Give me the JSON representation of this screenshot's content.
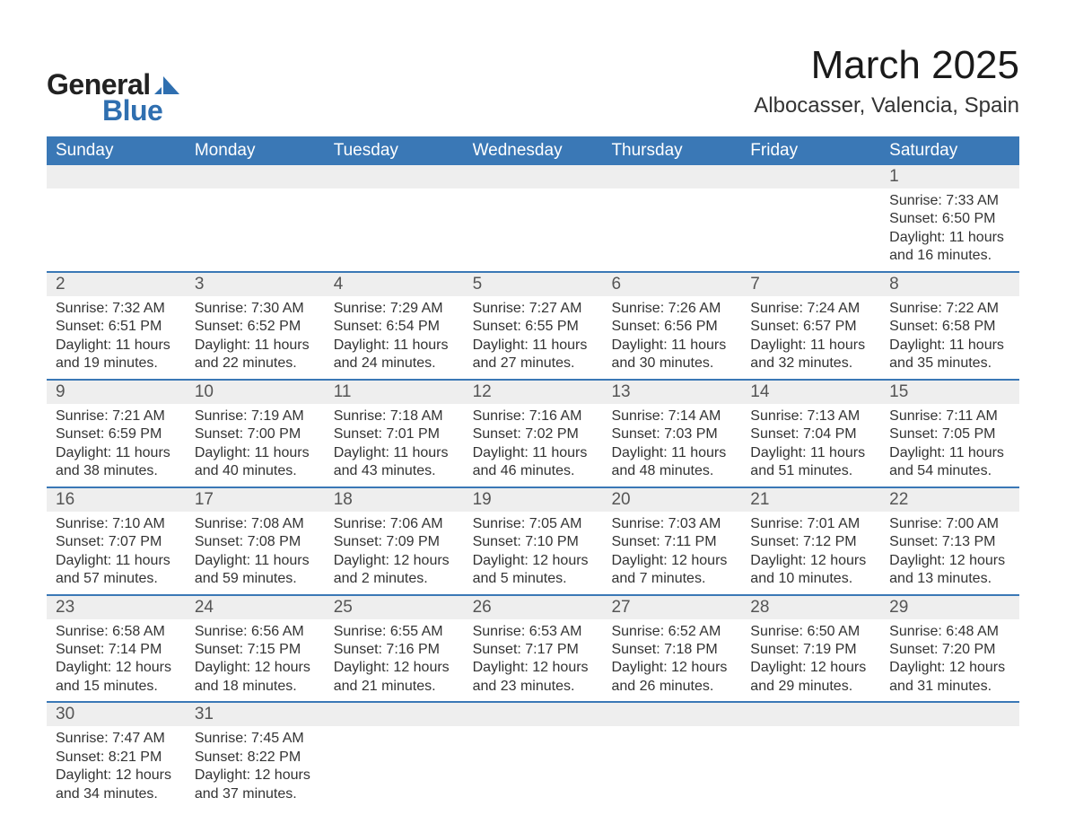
{
  "brand": {
    "text_general": "General",
    "text_blue": "Blue",
    "sail_color": "#2f6fb0",
    "text_color": "#222222"
  },
  "title": {
    "month": "March 2025",
    "location": "Albocasser, Valencia, Spain"
  },
  "colors": {
    "header_bg": "#3a78b6",
    "header_text": "#ffffff",
    "daynum_bg": "#eeeeee",
    "daynum_text": "#555555",
    "body_text": "#333333",
    "week_border": "#3a78b6",
    "page_bg": "#ffffff"
  },
  "typography": {
    "month_title_fontsize": 44,
    "location_fontsize": 24,
    "header_fontsize": 19,
    "daynum_fontsize": 19,
    "data_fontsize": 16,
    "logo_fontsize": 32
  },
  "day_labels": [
    "Sunday",
    "Monday",
    "Tuesday",
    "Wednesday",
    "Thursday",
    "Friday",
    "Saturday"
  ],
  "weeks": [
    [
      {
        "day": "",
        "sunrise": "",
        "sunset": "",
        "daylight1": "",
        "daylight2": ""
      },
      {
        "day": "",
        "sunrise": "",
        "sunset": "",
        "daylight1": "",
        "daylight2": ""
      },
      {
        "day": "",
        "sunrise": "",
        "sunset": "",
        "daylight1": "",
        "daylight2": ""
      },
      {
        "day": "",
        "sunrise": "",
        "sunset": "",
        "daylight1": "",
        "daylight2": ""
      },
      {
        "day": "",
        "sunrise": "",
        "sunset": "",
        "daylight1": "",
        "daylight2": ""
      },
      {
        "day": "",
        "sunrise": "",
        "sunset": "",
        "daylight1": "",
        "daylight2": ""
      },
      {
        "day": "1",
        "sunrise": "Sunrise: 7:33 AM",
        "sunset": "Sunset: 6:50 PM",
        "daylight1": "Daylight: 11 hours",
        "daylight2": "and 16 minutes."
      }
    ],
    [
      {
        "day": "2",
        "sunrise": "Sunrise: 7:32 AM",
        "sunset": "Sunset: 6:51 PM",
        "daylight1": "Daylight: 11 hours",
        "daylight2": "and 19 minutes."
      },
      {
        "day": "3",
        "sunrise": "Sunrise: 7:30 AM",
        "sunset": "Sunset: 6:52 PM",
        "daylight1": "Daylight: 11 hours",
        "daylight2": "and 22 minutes."
      },
      {
        "day": "4",
        "sunrise": "Sunrise: 7:29 AM",
        "sunset": "Sunset: 6:54 PM",
        "daylight1": "Daylight: 11 hours",
        "daylight2": "and 24 minutes."
      },
      {
        "day": "5",
        "sunrise": "Sunrise: 7:27 AM",
        "sunset": "Sunset: 6:55 PM",
        "daylight1": "Daylight: 11 hours",
        "daylight2": "and 27 minutes."
      },
      {
        "day": "6",
        "sunrise": "Sunrise: 7:26 AM",
        "sunset": "Sunset: 6:56 PM",
        "daylight1": "Daylight: 11 hours",
        "daylight2": "and 30 minutes."
      },
      {
        "day": "7",
        "sunrise": "Sunrise: 7:24 AM",
        "sunset": "Sunset: 6:57 PM",
        "daylight1": "Daylight: 11 hours",
        "daylight2": "and 32 minutes."
      },
      {
        "day": "8",
        "sunrise": "Sunrise: 7:22 AM",
        "sunset": "Sunset: 6:58 PM",
        "daylight1": "Daylight: 11 hours",
        "daylight2": "and 35 minutes."
      }
    ],
    [
      {
        "day": "9",
        "sunrise": "Sunrise: 7:21 AM",
        "sunset": "Sunset: 6:59 PM",
        "daylight1": "Daylight: 11 hours",
        "daylight2": "and 38 minutes."
      },
      {
        "day": "10",
        "sunrise": "Sunrise: 7:19 AM",
        "sunset": "Sunset: 7:00 PM",
        "daylight1": "Daylight: 11 hours",
        "daylight2": "and 40 minutes."
      },
      {
        "day": "11",
        "sunrise": "Sunrise: 7:18 AM",
        "sunset": "Sunset: 7:01 PM",
        "daylight1": "Daylight: 11 hours",
        "daylight2": "and 43 minutes."
      },
      {
        "day": "12",
        "sunrise": "Sunrise: 7:16 AM",
        "sunset": "Sunset: 7:02 PM",
        "daylight1": "Daylight: 11 hours",
        "daylight2": "and 46 minutes."
      },
      {
        "day": "13",
        "sunrise": "Sunrise: 7:14 AM",
        "sunset": "Sunset: 7:03 PM",
        "daylight1": "Daylight: 11 hours",
        "daylight2": "and 48 minutes."
      },
      {
        "day": "14",
        "sunrise": "Sunrise: 7:13 AM",
        "sunset": "Sunset: 7:04 PM",
        "daylight1": "Daylight: 11 hours",
        "daylight2": "and 51 minutes."
      },
      {
        "day": "15",
        "sunrise": "Sunrise: 7:11 AM",
        "sunset": "Sunset: 7:05 PM",
        "daylight1": "Daylight: 11 hours",
        "daylight2": "and 54 minutes."
      }
    ],
    [
      {
        "day": "16",
        "sunrise": "Sunrise: 7:10 AM",
        "sunset": "Sunset: 7:07 PM",
        "daylight1": "Daylight: 11 hours",
        "daylight2": "and 57 minutes."
      },
      {
        "day": "17",
        "sunrise": "Sunrise: 7:08 AM",
        "sunset": "Sunset: 7:08 PM",
        "daylight1": "Daylight: 11 hours",
        "daylight2": "and 59 minutes."
      },
      {
        "day": "18",
        "sunrise": "Sunrise: 7:06 AM",
        "sunset": "Sunset: 7:09 PM",
        "daylight1": "Daylight: 12 hours",
        "daylight2": "and 2 minutes."
      },
      {
        "day": "19",
        "sunrise": "Sunrise: 7:05 AM",
        "sunset": "Sunset: 7:10 PM",
        "daylight1": "Daylight: 12 hours",
        "daylight2": "and 5 minutes."
      },
      {
        "day": "20",
        "sunrise": "Sunrise: 7:03 AM",
        "sunset": "Sunset: 7:11 PM",
        "daylight1": "Daylight: 12 hours",
        "daylight2": "and 7 minutes."
      },
      {
        "day": "21",
        "sunrise": "Sunrise: 7:01 AM",
        "sunset": "Sunset: 7:12 PM",
        "daylight1": "Daylight: 12 hours",
        "daylight2": "and 10 minutes."
      },
      {
        "day": "22",
        "sunrise": "Sunrise: 7:00 AM",
        "sunset": "Sunset: 7:13 PM",
        "daylight1": "Daylight: 12 hours",
        "daylight2": "and 13 minutes."
      }
    ],
    [
      {
        "day": "23",
        "sunrise": "Sunrise: 6:58 AM",
        "sunset": "Sunset: 7:14 PM",
        "daylight1": "Daylight: 12 hours",
        "daylight2": "and 15 minutes."
      },
      {
        "day": "24",
        "sunrise": "Sunrise: 6:56 AM",
        "sunset": "Sunset: 7:15 PM",
        "daylight1": "Daylight: 12 hours",
        "daylight2": "and 18 minutes."
      },
      {
        "day": "25",
        "sunrise": "Sunrise: 6:55 AM",
        "sunset": "Sunset: 7:16 PM",
        "daylight1": "Daylight: 12 hours",
        "daylight2": "and 21 minutes."
      },
      {
        "day": "26",
        "sunrise": "Sunrise: 6:53 AM",
        "sunset": "Sunset: 7:17 PM",
        "daylight1": "Daylight: 12 hours",
        "daylight2": "and 23 minutes."
      },
      {
        "day": "27",
        "sunrise": "Sunrise: 6:52 AM",
        "sunset": "Sunset: 7:18 PM",
        "daylight1": "Daylight: 12 hours",
        "daylight2": "and 26 minutes."
      },
      {
        "day": "28",
        "sunrise": "Sunrise: 6:50 AM",
        "sunset": "Sunset: 7:19 PM",
        "daylight1": "Daylight: 12 hours",
        "daylight2": "and 29 minutes."
      },
      {
        "day": "29",
        "sunrise": "Sunrise: 6:48 AM",
        "sunset": "Sunset: 7:20 PM",
        "daylight1": "Daylight: 12 hours",
        "daylight2": "and 31 minutes."
      }
    ],
    [
      {
        "day": "30",
        "sunrise": "Sunrise: 7:47 AM",
        "sunset": "Sunset: 8:21 PM",
        "daylight1": "Daylight: 12 hours",
        "daylight2": "and 34 minutes."
      },
      {
        "day": "31",
        "sunrise": "Sunrise: 7:45 AM",
        "sunset": "Sunset: 8:22 PM",
        "daylight1": "Daylight: 12 hours",
        "daylight2": "and 37 minutes."
      },
      {
        "day": "",
        "sunrise": "",
        "sunset": "",
        "daylight1": "",
        "daylight2": ""
      },
      {
        "day": "",
        "sunrise": "",
        "sunset": "",
        "daylight1": "",
        "daylight2": ""
      },
      {
        "day": "",
        "sunrise": "",
        "sunset": "",
        "daylight1": "",
        "daylight2": ""
      },
      {
        "day": "",
        "sunrise": "",
        "sunset": "",
        "daylight1": "",
        "daylight2": ""
      },
      {
        "day": "",
        "sunrise": "",
        "sunset": "",
        "daylight1": "",
        "daylight2": ""
      }
    ]
  ]
}
